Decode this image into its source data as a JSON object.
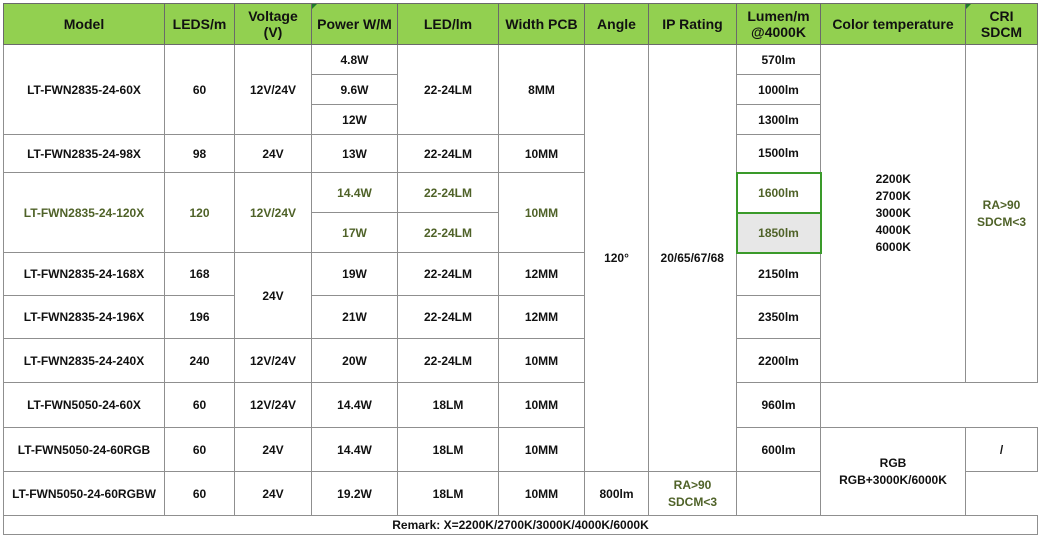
{
  "headers": {
    "model": "Model",
    "leds": "LEDS/m",
    "voltage_l1": "Voltage",
    "voltage_l2": "(V)",
    "power": "Power W/M",
    "led_lm": "LED/lm",
    "width": "Width PCB",
    "angle": "Angle",
    "ip": "IP  Rating",
    "lumen_l1": "Lumen/m",
    "lumen_l2": "@4000K",
    "color_temp": "Color  temperature",
    "cri_l1": "CRI",
    "cri_l2": "SDCM"
  },
  "rows": {
    "r60": {
      "model": "LT-FWN2835-24-60X",
      "leds": "60",
      "voltage": "12V/24V",
      "led_lm": "22-24LM",
      "width": "8MM",
      "power": [
        "4.8W",
        "9.6W",
        "12W"
      ],
      "lumen": [
        "570lm",
        "1000lm",
        "1300lm"
      ]
    },
    "r98": {
      "model": "LT-FWN2835-24-98X",
      "leds": "98",
      "voltage": "24V",
      "power": "13W",
      "led_lm": "22-24LM",
      "width": "10MM",
      "lumen": "1500lm"
    },
    "r120": {
      "model": "LT-FWN2835-24-120X",
      "leds": "120",
      "voltage": "12V/24V",
      "width": "10MM",
      "power": [
        "14.4W",
        "17W"
      ],
      "led_lm": [
        "22-24LM",
        "22-24LM"
      ],
      "lumen": [
        "1600lm",
        "1850lm"
      ]
    },
    "r168": {
      "model": "LT-FWN2835-24-168X",
      "leds": "168",
      "voltage": "24V",
      "power": "19W",
      "led_lm": "22-24LM",
      "width": "12MM",
      "lumen": "2150lm"
    },
    "r196": {
      "model": "LT-FWN2835-24-196X",
      "leds": "196",
      "power": "21W",
      "led_lm": "22-24LM",
      "width": "12MM",
      "lumen": "2350lm"
    },
    "r240": {
      "model": "LT-FWN2835-24-240X",
      "leds": "240",
      "voltage": "12V/24V",
      "power": "20W",
      "led_lm": "22-24LM",
      "width": "10MM",
      "lumen": "2200lm"
    },
    "r5050_60": {
      "model": "LT-FWN5050-24-60X",
      "leds": "60",
      "voltage": "12V/24V",
      "power": "14.4W",
      "led_lm": "18LM",
      "width": "10MM",
      "lumen": "960lm"
    },
    "rgb": {
      "model": "LT-FWN5050-24-60RGB",
      "leds": "60",
      "voltage": "24V",
      "power": "14.4W",
      "led_lm": "18LM",
      "width": "10MM",
      "lumen": "600lm",
      "cri": "/"
    },
    "rgbw": {
      "model": "LT-FWN5050-24-60RGBW",
      "leds": "60",
      "voltage": "24V",
      "power": "19.2W",
      "led_lm": "18LM",
      "width": "10MM",
      "lumen": "800lm",
      "cri_l1": "RA>90",
      "cri_l2": "SDCM<3"
    }
  },
  "shared": {
    "angle": "120°",
    "ip": "20/65/67/68",
    "color_temps": [
      "2200K",
      "2700K",
      "3000K",
      "4000K",
      "6000K"
    ],
    "cri_l1": "RA>90",
    "cri_l2": "SDCM<3",
    "rgb_temp_l1": "RGB",
    "rgb_temp_l2": "RGB+3000K/6000K"
  },
  "remark": "Remark: X=2200K/2700K/3000K/4000K/6000K",
  "colors": {
    "header_bg": "#92d050",
    "highlight_text": "#4f6228",
    "selection_border": "#3a9a2a",
    "border": "#8f8f8f"
  }
}
